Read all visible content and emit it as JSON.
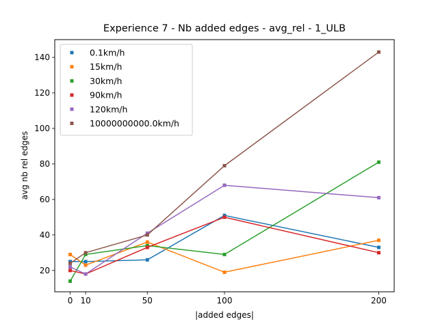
{
  "chart_data": {
    "type": "line",
    "title": "Experience 7 - Nb added edges - avg_rel - 1_ULB",
    "xlabel": "|added edges|",
    "ylabel": "avg nb rel edges",
    "x": [
      0,
      10,
      50,
      100,
      200
    ],
    "xticks": [
      "0",
      "10",
      "50",
      "100",
      "200"
    ],
    "yticks": [
      20,
      40,
      60,
      80,
      100,
      120,
      140
    ],
    "xlim": [
      -10,
      210
    ],
    "ylim": [
      8,
      150
    ],
    "legend_position": "upper-left",
    "grid": false,
    "series": [
      {
        "name": "0.1km/h",
        "color": "#1f77b4",
        "values": [
          25,
          25,
          26,
          51,
          33
        ]
      },
      {
        "name": "15km/h",
        "color": "#ff7f0e",
        "values": [
          29,
          23,
          36,
          19,
          37
        ]
      },
      {
        "name": "30km/h",
        "color": "#2ca02c",
        "values": [
          14,
          29,
          34,
          29,
          81
        ]
      },
      {
        "name": "90km/h",
        "color": "#d62728",
        "values": [
          20,
          18,
          33,
          50,
          30
        ]
      },
      {
        "name": "120km/h",
        "color": "#9467bd",
        "values": [
          22,
          18,
          41,
          68,
          61
        ]
      },
      {
        "name": "10000000000.0km/h",
        "color": "#8c564b",
        "values": [
          24,
          30,
          40,
          79,
          143
        ]
      }
    ]
  }
}
